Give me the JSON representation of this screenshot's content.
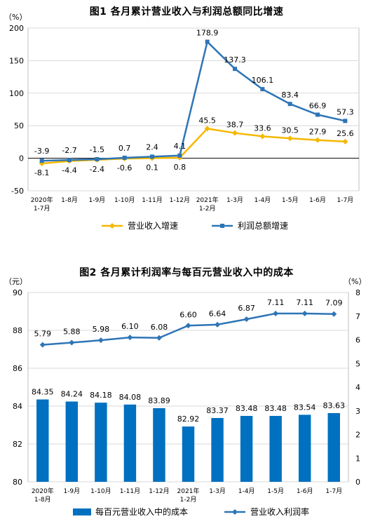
{
  "chart_data": [
    {
      "type": "line",
      "title": "图1  各月累计营业收入与利润总额同比增速",
      "y_unit_label": "（%）",
      "ylim": [
        -50,
        200
      ],
      "yticks": [
        -50,
        0,
        50,
        100,
        150,
        200
      ],
      "grid": true,
      "legend_position": "bottom",
      "categories": [
        [
          "2020年",
          "1-7月"
        ],
        [
          "1-8月"
        ],
        [
          "1-9月"
        ],
        [
          "1-10月"
        ],
        [
          "1-11月"
        ],
        [
          "1-12月"
        ],
        [
          "2021年",
          "1-2月"
        ],
        [
          "1-3月"
        ],
        [
          "1-4月"
        ],
        [
          "1-5月"
        ],
        [
          "1-6月"
        ],
        [
          "1-7月"
        ]
      ],
      "series": [
        {
          "name": "营业收入增速",
          "color": "#F5B800",
          "marker": "diamond",
          "label_position": "mixed",
          "values": [
            -8.1,
            -4.4,
            -2.4,
            -0.6,
            0.1,
            0.8,
            45.5,
            38.7,
            33.6,
            30.5,
            27.9,
            25.6
          ],
          "labels": [
            "-8.1",
            "-4.4",
            "-2.4",
            "-0.6",
            "0.1",
            "0.8",
            "45.5",
            "38.7",
            "33.6",
            "30.5",
            "27.9",
            "25.6"
          ]
        },
        {
          "name": "利润总额增速",
          "color": "#2E75B6",
          "marker": "square",
          "label_position": "above",
          "values": [
            -3.9,
            -2.7,
            -1.5,
            0.7,
            2.4,
            4.1,
            178.9,
            137.3,
            106.1,
            83.4,
            66.9,
            57.3
          ],
          "labels": [
            "-3.9",
            "-2.7",
            "-1.5",
            "0.7",
            "2.4",
            "4.1",
            "178.9",
            "137.3",
            "106.1",
            "83.4",
            "66.9",
            "57.3"
          ]
        }
      ]
    },
    {
      "type": "bar+line",
      "title": "图2  各月累计利润率与每百元营业收入中的成本",
      "y_left_unit_label": "（元）",
      "y_right_unit_label": "（%）",
      "ylim_left": [
        80,
        90
      ],
      "yticks_left": [
        80,
        82,
        84,
        86,
        88,
        90
      ],
      "ylim_right": [
        0,
        8
      ],
      "yticks_right": [
        0,
        1,
        2,
        3,
        4,
        5,
        6,
        7,
        8
      ],
      "grid": true,
      "legend_position": "bottom",
      "categories": [
        [
          "2020年",
          "1-8月"
        ],
        [
          "1-9月"
        ],
        [
          "1-10月"
        ],
        [
          "1-11月"
        ],
        [
          "1-12月"
        ],
        [
          "2021年",
          "1-2月"
        ],
        [
          "1-3月"
        ],
        [
          "1-4月"
        ],
        [
          "1-5月"
        ],
        [
          "1-6月"
        ],
        [
          "1-7月"
        ]
      ],
      "series": [
        {
          "name": "每百元营业收入中的成本",
          "type": "bar",
          "axis": "left",
          "color": "#0070C0",
          "values": [
            84.35,
            84.24,
            84.18,
            84.08,
            83.89,
            82.92,
            83.37,
            83.48,
            83.48,
            83.54,
            83.63
          ],
          "labels": [
            "84.35",
            "84.24",
            "84.18",
            "84.08",
            "83.89",
            "82.92",
            "83.37",
            "83.48",
            "83.48",
            "83.54",
            "83.63"
          ]
        },
        {
          "name": "营业收入利润率",
          "type": "line",
          "axis": "right",
          "color": "#2E75B6",
          "marker": "diamond",
          "values": [
            5.79,
            5.88,
            5.98,
            6.1,
            6.08,
            6.6,
            6.64,
            6.87,
            7.11,
            7.11,
            7.09
          ],
          "labels": [
            "5.79",
            "5.88",
            "5.98",
            "6.10",
            "6.08",
            "6.60",
            "6.64",
            "6.87",
            "7.11",
            "7.11",
            "7.09"
          ]
        }
      ]
    }
  ]
}
